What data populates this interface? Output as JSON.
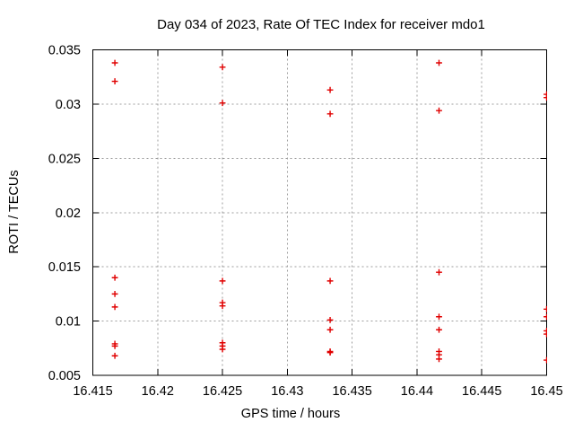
{
  "title": "Day 034 of 2023, Rate Of TEC Index for receiver mdo1",
  "colors": {
    "background": "#ffffff",
    "border": "#000000",
    "grid": "#9c9c9c",
    "text": "#000000",
    "marker": "#e00000"
  },
  "chart_data": {
    "type": "scatter",
    "title": "Day 034 of 2023, Rate Of TEC Index for receiver mdo1",
    "xlabel": "GPS time / hours",
    "ylabel": "ROTI / TECUs",
    "xlim": [
      16.415,
      16.45
    ],
    "ylim": [
      0.005,
      0.035
    ],
    "xticks": [
      16.415,
      16.42,
      16.425,
      16.43,
      16.435,
      16.44,
      16.445,
      16.45
    ],
    "xtick_labels": [
      "16.415",
      "16.42",
      "16.425",
      "16.43",
      "16.435",
      "16.44",
      "16.445",
      "16.45"
    ],
    "yticks": [
      0.005,
      0.01,
      0.015,
      0.02,
      0.025,
      0.03,
      0.035
    ],
    "ytick_labels": [
      "0.005",
      "0.01",
      "0.015",
      "0.02",
      "0.025",
      "0.03",
      "0.035"
    ],
    "grid": true,
    "grid_style": "dashed",
    "legend": "none",
    "marker": "plus",
    "marker_color": "#e00000",
    "series": [
      {
        "name": "ROTI",
        "points": [
          [
            16.4167,
            0.0338
          ],
          [
            16.4167,
            0.0321
          ],
          [
            16.4167,
            0.014
          ],
          [
            16.4167,
            0.0125
          ],
          [
            16.4167,
            0.0113
          ],
          [
            16.4167,
            0.0079
          ],
          [
            16.4167,
            0.0077
          ],
          [
            16.4167,
            0.0068
          ],
          [
            16.425,
            0.0334
          ],
          [
            16.425,
            0.0301
          ],
          [
            16.425,
            0.0137
          ],
          [
            16.425,
            0.0117
          ],
          [
            16.425,
            0.0114
          ],
          [
            16.425,
            0.008
          ],
          [
            16.425,
            0.0077
          ],
          [
            16.425,
            0.0074
          ],
          [
            16.4333,
            0.0313
          ],
          [
            16.4333,
            0.0291
          ],
          [
            16.4333,
            0.0137
          ],
          [
            16.4333,
            0.0101
          ],
          [
            16.4333,
            0.0092
          ],
          [
            16.4333,
            0.0072
          ],
          [
            16.4333,
            0.0071
          ],
          [
            16.4417,
            0.0338
          ],
          [
            16.4417,
            0.0294
          ],
          [
            16.4417,
            0.0145
          ],
          [
            16.4417,
            0.0104
          ],
          [
            16.4417,
            0.0092
          ],
          [
            16.4417,
            0.0072
          ],
          [
            16.4417,
            0.0069
          ],
          [
            16.4417,
            0.0065
          ],
          [
            16.45,
            0.0309
          ],
          [
            16.45,
            0.0306
          ],
          [
            16.45,
            0.0111
          ],
          [
            16.45,
            0.0104
          ],
          [
            16.45,
            0.0091
          ],
          [
            16.45,
            0.0088
          ],
          [
            16.45,
            0.0064
          ]
        ]
      }
    ]
  }
}
